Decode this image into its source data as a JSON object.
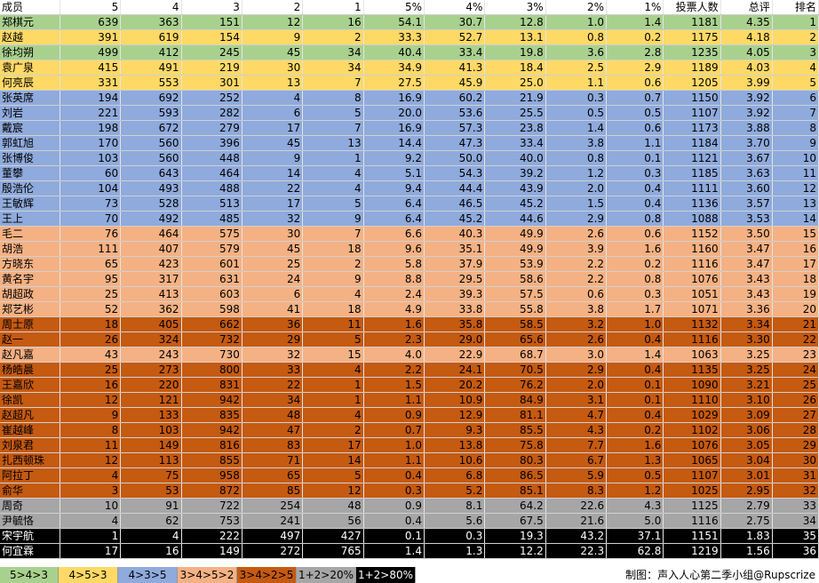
{
  "chart_data": {
    "type": "table",
    "headers": [
      "成员",
      "5",
      "4",
      "3",
      "2",
      "1",
      "5%",
      "4%",
      "3%",
      "2%",
      "1%",
      "投票人数",
      "总评",
      "排名"
    ],
    "groups": [
      {
        "key": "g1",
        "label": "5>4>3",
        "bg": "#a9d18e",
        "fg": "#000000"
      },
      {
        "key": "g2",
        "label": "4>5>3",
        "bg": "#ffd966",
        "fg": "#000000"
      },
      {
        "key": "g3",
        "label": "4>3>5",
        "bg": "#8faadc",
        "fg": "#000000"
      },
      {
        "key": "g4",
        "label": "3>4>5>2",
        "bg": "#f4b183",
        "fg": "#000000"
      },
      {
        "key": "g5",
        "label": "3>4>2>5",
        "bg": "#c55a11",
        "fg": "#000000"
      },
      {
        "key": "g6",
        "label": "1+2>20%",
        "bg": "#a6a6a6",
        "fg": "#000000"
      },
      {
        "key": "g7",
        "label": "1+2>80%",
        "bg": "#000000",
        "fg": "#ffffff"
      }
    ],
    "rows": [
      {
        "g": "g1",
        "name": "郑棋元",
        "c": [
          "639",
          "363",
          "151",
          "12",
          "16",
          "54.1",
          "30.7",
          "12.8",
          "1.0",
          "1.4",
          "1181",
          "4.35",
          "1"
        ]
      },
      {
        "g": "g2",
        "name": "赵越",
        "c": [
          "391",
          "619",
          "154",
          "9",
          "2",
          "33.3",
          "52.7",
          "13.1",
          "0.8",
          "0.2",
          "1175",
          "4.18",
          "2"
        ]
      },
      {
        "g": "g1",
        "name": "徐均朔",
        "c": [
          "499",
          "412",
          "245",
          "45",
          "34",
          "40.4",
          "33.4",
          "19.8",
          "3.6",
          "2.8",
          "1235",
          "4.05",
          "3"
        ]
      },
      {
        "g": "g2",
        "name": "袁广泉",
        "c": [
          "415",
          "491",
          "219",
          "30",
          "34",
          "34.9",
          "41.3",
          "18.4",
          "2.5",
          "2.9",
          "1189",
          "4.03",
          "4"
        ]
      },
      {
        "g": "g2",
        "name": "何亮辰",
        "c": [
          "331",
          "553",
          "301",
          "13",
          "7",
          "27.5",
          "45.9",
          "25.0",
          "1.1",
          "0.6",
          "1205",
          "3.99",
          "5"
        ]
      },
      {
        "g": "g3",
        "name": "张英席",
        "c": [
          "194",
          "692",
          "252",
          "4",
          "8",
          "16.9",
          "60.2",
          "21.9",
          "0.3",
          "0.7",
          "1150",
          "3.92",
          "6"
        ]
      },
      {
        "g": "g3",
        "name": "刘岩",
        "c": [
          "221",
          "593",
          "282",
          "6",
          "5",
          "20.0",
          "53.6",
          "25.5",
          "0.5",
          "0.5",
          "1107",
          "3.92",
          "7"
        ]
      },
      {
        "g": "g3",
        "name": "戴宸",
        "c": [
          "198",
          "672",
          "279",
          "17",
          "7",
          "16.9",
          "57.3",
          "23.8",
          "1.4",
          "0.6",
          "1173",
          "3.88",
          "8"
        ]
      },
      {
        "g": "g3",
        "name": "郭虹旭",
        "c": [
          "170",
          "560",
          "396",
          "45",
          "13",
          "14.4",
          "47.3",
          "33.4",
          "3.8",
          "1.1",
          "1184",
          "3.70",
          "9"
        ]
      },
      {
        "g": "g3",
        "name": "张博俊",
        "c": [
          "103",
          "560",
          "448",
          "9",
          "1",
          "9.2",
          "50.0",
          "40.0",
          "0.8",
          "0.1",
          "1121",
          "3.67",
          "10"
        ]
      },
      {
        "g": "g3",
        "name": "董攀",
        "c": [
          "60",
          "643",
          "464",
          "14",
          "4",
          "5.1",
          "54.3",
          "39.2",
          "1.2",
          "0.3",
          "1185",
          "3.63",
          "11"
        ]
      },
      {
        "g": "g3",
        "name": "殷浩伦",
        "c": [
          "104",
          "493",
          "488",
          "22",
          "4",
          "9.4",
          "44.4",
          "43.9",
          "2.0",
          "0.4",
          "1111",
          "3.60",
          "12"
        ]
      },
      {
        "g": "g3",
        "name": "王敏辉",
        "c": [
          "73",
          "528",
          "513",
          "17",
          "5",
          "6.4",
          "46.5",
          "45.2",
          "1.5",
          "0.4",
          "1136",
          "3.57",
          "13"
        ]
      },
      {
        "g": "g3",
        "name": "王上",
        "c": [
          "70",
          "492",
          "485",
          "32",
          "9",
          "6.4",
          "45.2",
          "44.6",
          "2.9",
          "0.8",
          "1088",
          "3.53",
          "14"
        ]
      },
      {
        "g": "g4",
        "name": "毛二",
        "c": [
          "76",
          "464",
          "575",
          "30",
          "7",
          "6.6",
          "40.3",
          "49.9",
          "2.6",
          "0.6",
          "1152",
          "3.50",
          "15"
        ]
      },
      {
        "g": "g4",
        "name": "胡浩",
        "c": [
          "111",
          "407",
          "579",
          "45",
          "18",
          "9.6",
          "35.1",
          "49.9",
          "3.9",
          "1.6",
          "1160",
          "3.47",
          "16"
        ]
      },
      {
        "g": "g4",
        "name": "方晓东",
        "c": [
          "65",
          "423",
          "601",
          "25",
          "2",
          "5.8",
          "37.9",
          "53.9",
          "2.2",
          "0.2",
          "1116",
          "3.47",
          "17"
        ]
      },
      {
        "g": "g4",
        "name": "黄名宇",
        "c": [
          "95",
          "317",
          "631",
          "24",
          "9",
          "8.8",
          "29.5",
          "58.6",
          "2.2",
          "0.8",
          "1076",
          "3.43",
          "18"
        ]
      },
      {
        "g": "g4",
        "name": "胡超政",
        "c": [
          "25",
          "413",
          "603",
          "6",
          "4",
          "2.4",
          "39.3",
          "57.5",
          "0.6",
          "0.3",
          "1051",
          "3.43",
          "19"
        ]
      },
      {
        "g": "g4",
        "name": "郑艺彬",
        "c": [
          "52",
          "362",
          "598",
          "41",
          "18",
          "4.9",
          "33.8",
          "55.8",
          "3.8",
          "1.7",
          "1071",
          "3.36",
          "20"
        ]
      },
      {
        "g": "g5",
        "name": "周士原",
        "c": [
          "18",
          "405",
          "662",
          "36",
          "11",
          "1.6",
          "35.8",
          "58.5",
          "3.2",
          "1.0",
          "1132",
          "3.34",
          "21"
        ]
      },
      {
        "g": "g5",
        "name": "赵一",
        "c": [
          "26",
          "324",
          "732",
          "29",
          "5",
          "2.3",
          "29.0",
          "65.6",
          "2.6",
          "0.4",
          "1116",
          "3.30",
          "22"
        ]
      },
      {
        "g": "g4",
        "name": "赵凡嘉",
        "c": [
          "43",
          "243",
          "730",
          "32",
          "15",
          "4.0",
          "22.9",
          "68.7",
          "3.0",
          "1.4",
          "1063",
          "3.25",
          "23"
        ]
      },
      {
        "g": "g5",
        "name": "杨皓晨",
        "c": [
          "25",
          "273",
          "800",
          "33",
          "4",
          "2.2",
          "24.1",
          "70.5",
          "2.9",
          "0.4",
          "1135",
          "3.25",
          "24"
        ]
      },
      {
        "g": "g5",
        "name": "王嘉欣",
        "c": [
          "16",
          "220",
          "831",
          "22",
          "1",
          "1.5",
          "20.2",
          "76.2",
          "2.0",
          "0.1",
          "1090",
          "3.21",
          "25"
        ]
      },
      {
        "g": "g5",
        "name": "徐凯",
        "c": [
          "12",
          "121",
          "942",
          "34",
          "1",
          "1.1",
          "10.9",
          "84.9",
          "3.1",
          "0.1",
          "1110",
          "3.10",
          "26"
        ]
      },
      {
        "g": "g5",
        "name": "赵超凡",
        "c": [
          "9",
          "133",
          "835",
          "48",
          "4",
          "0.9",
          "12.9",
          "81.1",
          "4.7",
          "0.4",
          "1029",
          "3.09",
          "27"
        ]
      },
      {
        "g": "g5",
        "name": "崔越峰",
        "c": [
          "8",
          "103",
          "942",
          "47",
          "2",
          "0.7",
          "9.3",
          "85.5",
          "4.3",
          "0.2",
          "1102",
          "3.06",
          "28"
        ]
      },
      {
        "g": "g5",
        "name": "刘泉君",
        "c": [
          "11",
          "149",
          "816",
          "83",
          "17",
          "1.0",
          "13.8",
          "75.8",
          "7.7",
          "1.6",
          "1076",
          "3.05",
          "29"
        ]
      },
      {
        "g": "g5",
        "name": "扎西顿珠",
        "c": [
          "12",
          "113",
          "855",
          "71",
          "14",
          "1.1",
          "10.6",
          "80.3",
          "6.7",
          "1.3",
          "1065",
          "3.04",
          "30"
        ]
      },
      {
        "g": "g5",
        "name": "阿拉丁",
        "c": [
          "4",
          "75",
          "958",
          "65",
          "5",
          "0.4",
          "6.8",
          "86.5",
          "5.9",
          "0.5",
          "1107",
          "3.01",
          "31"
        ]
      },
      {
        "g": "g5",
        "name": "俞华",
        "c": [
          "3",
          "53",
          "872",
          "85",
          "12",
          "0.3",
          "5.2",
          "85.1",
          "8.3",
          "1.2",
          "1025",
          "2.95",
          "32"
        ]
      },
      {
        "g": "g6",
        "name": "周奇",
        "c": [
          "10",
          "91",
          "722",
          "254",
          "48",
          "0.9",
          "8.1",
          "64.2",
          "22.6",
          "4.3",
          "1125",
          "2.79",
          "33"
        ]
      },
      {
        "g": "g6",
        "name": "尹毓恪",
        "c": [
          "4",
          "62",
          "753",
          "241",
          "56",
          "0.4",
          "5.6",
          "67.5",
          "21.6",
          "5.0",
          "1116",
          "2.75",
          "34"
        ]
      },
      {
        "g": "g7",
        "name": "宋宇航",
        "c": [
          "1",
          "4",
          "222",
          "497",
          "427",
          "0.1",
          "0.3",
          "19.3",
          "43.2",
          "37.1",
          "1151",
          "1.83",
          "35"
        ]
      },
      {
        "g": "g7",
        "name": "何宜霖",
        "c": [
          "17",
          "16",
          "149",
          "272",
          "765",
          "1.4",
          "1.3",
          "12.2",
          "22.3",
          "62.8",
          "1219",
          "1.56",
          "36"
        ]
      }
    ],
    "credit": "制图：声入人心第二季小组@Rupscrize"
  }
}
